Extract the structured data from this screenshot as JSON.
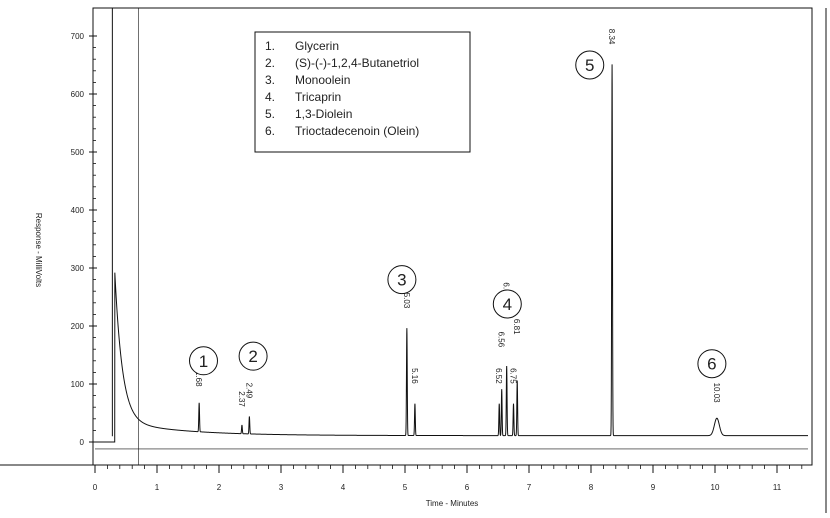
{
  "chart_data": {
    "type": "line",
    "xlabel": "Time - Minutes",
    "ylabel": "Response - MilliVolts",
    "xlim": [
      0,
      11.5
    ],
    "ylim": [
      -50,
      720
    ],
    "x_ticks": [
      0,
      1,
      2,
      3,
      4,
      5,
      6,
      7,
      8,
      9,
      10,
      11
    ],
    "y_ticks": [
      0,
      100,
      200,
      300,
      400,
      500,
      600,
      700
    ],
    "grid": false,
    "legend_position": "top-center",
    "legend": [
      {
        "num": "1.",
        "name": "Glycerin"
      },
      {
        "num": "2.",
        "name": "(S)-(-)-1,2,4-Butanetriol"
      },
      {
        "num": "3.",
        "name": "Monoolein"
      },
      {
        "num": "4.",
        "name": "Tricaprin"
      },
      {
        "num": "5.",
        "name": "1,3-Diolein"
      },
      {
        "num": "6.",
        "name": "Trioctadecenoin (Olein)"
      }
    ],
    "peak_labels": [
      {
        "label": "1.68",
        "x": 1.68,
        "height": 50
      },
      {
        "label": "2.37",
        "x": 2.37,
        "height": 15
      },
      {
        "label": "2.49",
        "x": 2.49,
        "height": 30
      },
      {
        "label": "5.03",
        "x": 5.03,
        "height": 185
      },
      {
        "label": "5.16",
        "x": 5.16,
        "height": 55
      },
      {
        "label": "6.52",
        "x": 6.52,
        "height": 55
      },
      {
        "label": "6.56",
        "x": 6.56,
        "height": 80
      },
      {
        "label": "6.64",
        "x": 6.64,
        "height": 120
      },
      {
        "label": "6.75",
        "x": 6.75,
        "height": 55
      },
      {
        "label": "6.81",
        "x": 6.81,
        "height": 95
      },
      {
        "label": "8.34",
        "x": 8.34,
        "height": 640
      },
      {
        "label": "10.03",
        "x": 10.03,
        "height": 30
      }
    ],
    "circle_markers": [
      {
        "num": "1",
        "x": 1.75,
        "y": 140
      },
      {
        "num": "2",
        "x": 2.55,
        "y": 148
      },
      {
        "num": "3",
        "x": 4.95,
        "y": 280
      },
      {
        "num": "4",
        "x": 6.65,
        "y": 238
      },
      {
        "num": "5",
        "x": 7.98,
        "y": 650
      },
      {
        "num": "6",
        "x": 9.95,
        "y": 135
      }
    ]
  }
}
